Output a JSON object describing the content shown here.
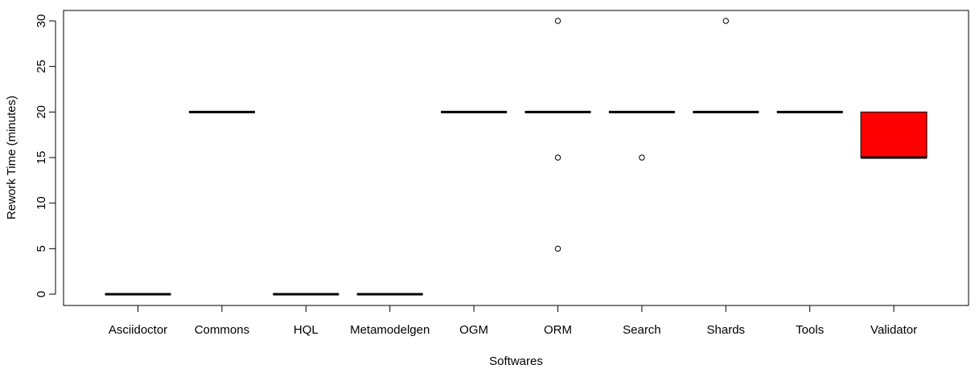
{
  "chart_data": {
    "type": "box",
    "title": "",
    "xlabel": "Softwares",
    "ylabel": "Rework Time (minutes)",
    "ylim": [
      0,
      30
    ],
    "yticks": [
      0,
      5,
      10,
      15,
      20,
      25,
      30
    ],
    "grid": false,
    "legend": "none",
    "categories": [
      "Asciidoctor",
      "Commons",
      "HQL",
      "Metamodelgen",
      "OGM",
      "ORM",
      "Search",
      "Shards",
      "Tools",
      "Validator"
    ],
    "boxes": [
      {
        "name": "Asciidoctor",
        "q1": 0,
        "median": 0,
        "q3": 0,
        "whisker_low": 0,
        "whisker_high": 0,
        "outliers": []
      },
      {
        "name": "Commons",
        "q1": 20,
        "median": 20,
        "q3": 20,
        "whisker_low": 20,
        "whisker_high": 20,
        "outliers": []
      },
      {
        "name": "HQL",
        "q1": 0,
        "median": 0,
        "q3": 0,
        "whisker_low": 0,
        "whisker_high": 0,
        "outliers": []
      },
      {
        "name": "Metamodelgen",
        "q1": 0,
        "median": 0,
        "q3": 0,
        "whisker_low": 0,
        "whisker_high": 0,
        "outliers": []
      },
      {
        "name": "OGM",
        "q1": 20,
        "median": 20,
        "q3": 20,
        "whisker_low": 20,
        "whisker_high": 20,
        "outliers": []
      },
      {
        "name": "ORM",
        "q1": 20,
        "median": 20,
        "q3": 20,
        "whisker_low": 20,
        "whisker_high": 20,
        "outliers": [
          30,
          15,
          5
        ]
      },
      {
        "name": "Search",
        "q1": 20,
        "median": 20,
        "q3": 20,
        "whisker_low": 20,
        "whisker_high": 20,
        "outliers": [
          15
        ]
      },
      {
        "name": "Shards",
        "q1": 20,
        "median": 20,
        "q3": 20,
        "whisker_low": 20,
        "whisker_high": 20,
        "outliers": [
          30
        ]
      },
      {
        "name": "Tools",
        "q1": 20,
        "median": 20,
        "q3": 20,
        "whisker_low": 20,
        "whisker_high": 20,
        "outliers": []
      },
      {
        "name": "Validator",
        "q1": 15,
        "median": 15,
        "q3": 20,
        "whisker_low": 15,
        "whisker_high": 20,
        "outliers": [],
        "fill": "#ff0000"
      }
    ],
    "colors": {
      "default_box_fill": "#ffffff",
      "highlight_fill": "#ff0000"
    }
  }
}
